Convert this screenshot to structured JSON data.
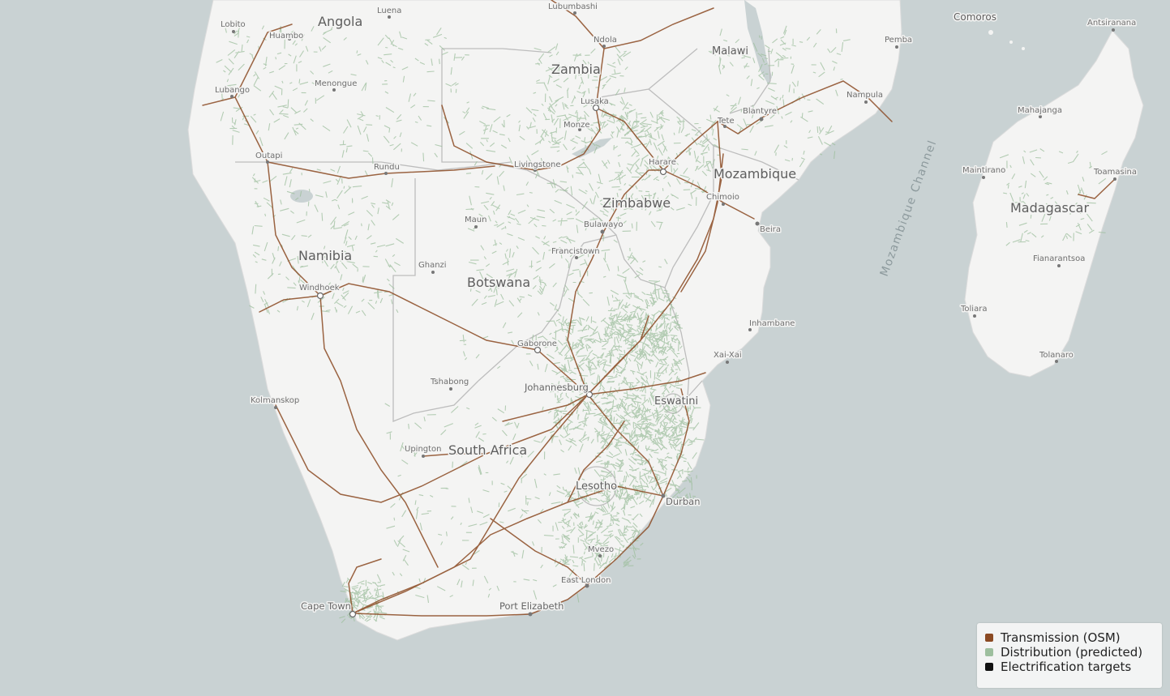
{
  "colors": {
    "ocean": "#c9d2d3",
    "land": "#f4f4f3",
    "transmission": "#8b4a23",
    "distribution": "#9dbf9e",
    "targets": "#111111"
  },
  "countries": {
    "angola": "Angola",
    "zambia": "Zambia",
    "malawi": "Malawi",
    "mozambique": "Mozambique",
    "zimbabwe": "Zimbabwe",
    "namibia": "Namibia",
    "botswana": "Botswana",
    "south_africa": "South Africa",
    "lesotho": "Lesotho",
    "eswatini": "Eswatini",
    "madagascar": "Madagascar",
    "comoros": "Comoros"
  },
  "cities": {
    "lobito": "Lobito",
    "huambo": "Huambo",
    "luena": "Luena",
    "lubumbashi": "Lubumbashi",
    "ndola": "Ndola",
    "lubango": "Lubango",
    "menongue": "Menongue",
    "lusaka": "Lusaka",
    "monze": "Monze",
    "tete": "Tete",
    "blantyre": "Blantyre",
    "pemba": "Pemba",
    "nampula": "Nampula",
    "antsiranana": "Antsiranana",
    "mahajanga": "Mahajanga",
    "maintirano": "Maintirano",
    "toamasina": "Toamasina",
    "fianarantsoa": "Fianarantsoa",
    "toliara": "Toliara",
    "tolanaro": "Tolanaro",
    "outapi": "Outapi",
    "rundu": "Rundu",
    "livingstone": "Livingstone",
    "harare": "Harare",
    "chimoio": "Chimoio",
    "beira": "Beira",
    "maun": "Maun",
    "bulawayo": "Bulawayo",
    "francistown": "Francistown",
    "ghanzi": "Ghanzi",
    "windhoek": "Windhoek",
    "inhambane": "Inhambane",
    "xai_xai": "Xai-Xai",
    "gaborone": "Gaborone",
    "tshabong": "Tshabong",
    "johannesburg": "Johannesburg",
    "kolmanskop": "Kolmanskop",
    "upington": "Upington",
    "durban": "Durban",
    "mvezo": "Mvezo",
    "east_london": "East London",
    "cape_town": "Cape Town",
    "port_elizabeth": "Port Elizabeth"
  },
  "water": {
    "mozambique_channel": "Mozambique Channel"
  },
  "legend": {
    "items": [
      {
        "label": "Transmission (OSM)",
        "color": "#8b4a23"
      },
      {
        "label": "Distribution (predicted)",
        "color": "#9dbf9e"
      },
      {
        "label": "Electrification targets",
        "color": "#111111"
      }
    ]
  }
}
